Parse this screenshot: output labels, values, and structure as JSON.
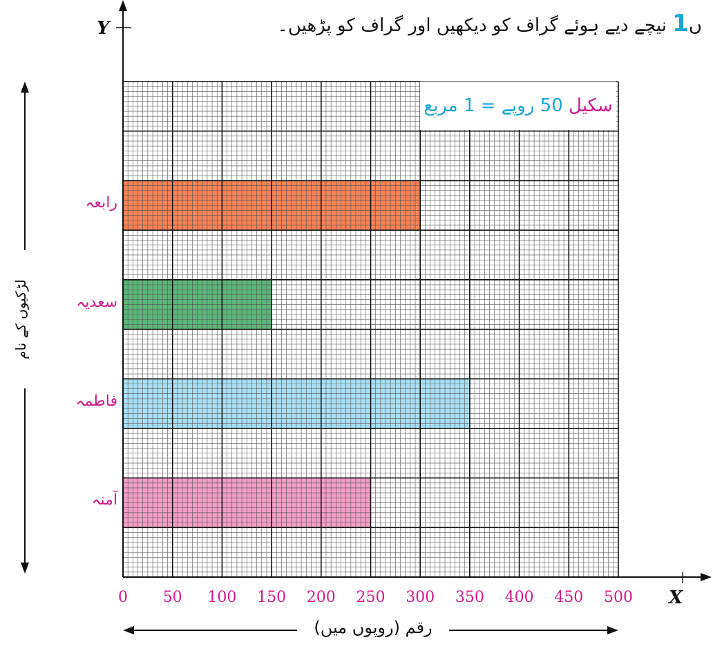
{
  "heading": {
    "prefix": "ں",
    "number": "1",
    "text": "نیچے دیے ہوئے گراف کو دیکھیں اور گراف کو پڑھیں۔"
  },
  "scale": {
    "key": "سکیل",
    "value": "50 روپے = 1 مربع"
  },
  "colors": {
    "grid_fine": "#555555",
    "grid_major": "#111111",
    "tick_text": "#d41a8a",
    "accent": "#19a5d8"
  },
  "chart_data": {
    "type": "bar",
    "orientation": "horizontal",
    "xlabel": "رقم (روپوں میں)",
    "ylabel": "لڑکیوں کے نام",
    "x_axis_letter": "X",
    "y_axis_letter": "Y",
    "xlim": [
      0,
      500
    ],
    "x_ticks": [
      "0",
      "50",
      "100",
      "150",
      "200",
      "250",
      "300",
      "350",
      "400",
      "450",
      "500"
    ],
    "categories": [
      "رابعہ",
      "سعدیہ",
      "فاطمہ",
      "آمنہ"
    ],
    "values": [
      300,
      150,
      350,
      250
    ],
    "bar_colors": [
      "#f58357",
      "#5cb57a",
      "#a9dff2",
      "#f29ec6"
    ],
    "grid": true
  }
}
